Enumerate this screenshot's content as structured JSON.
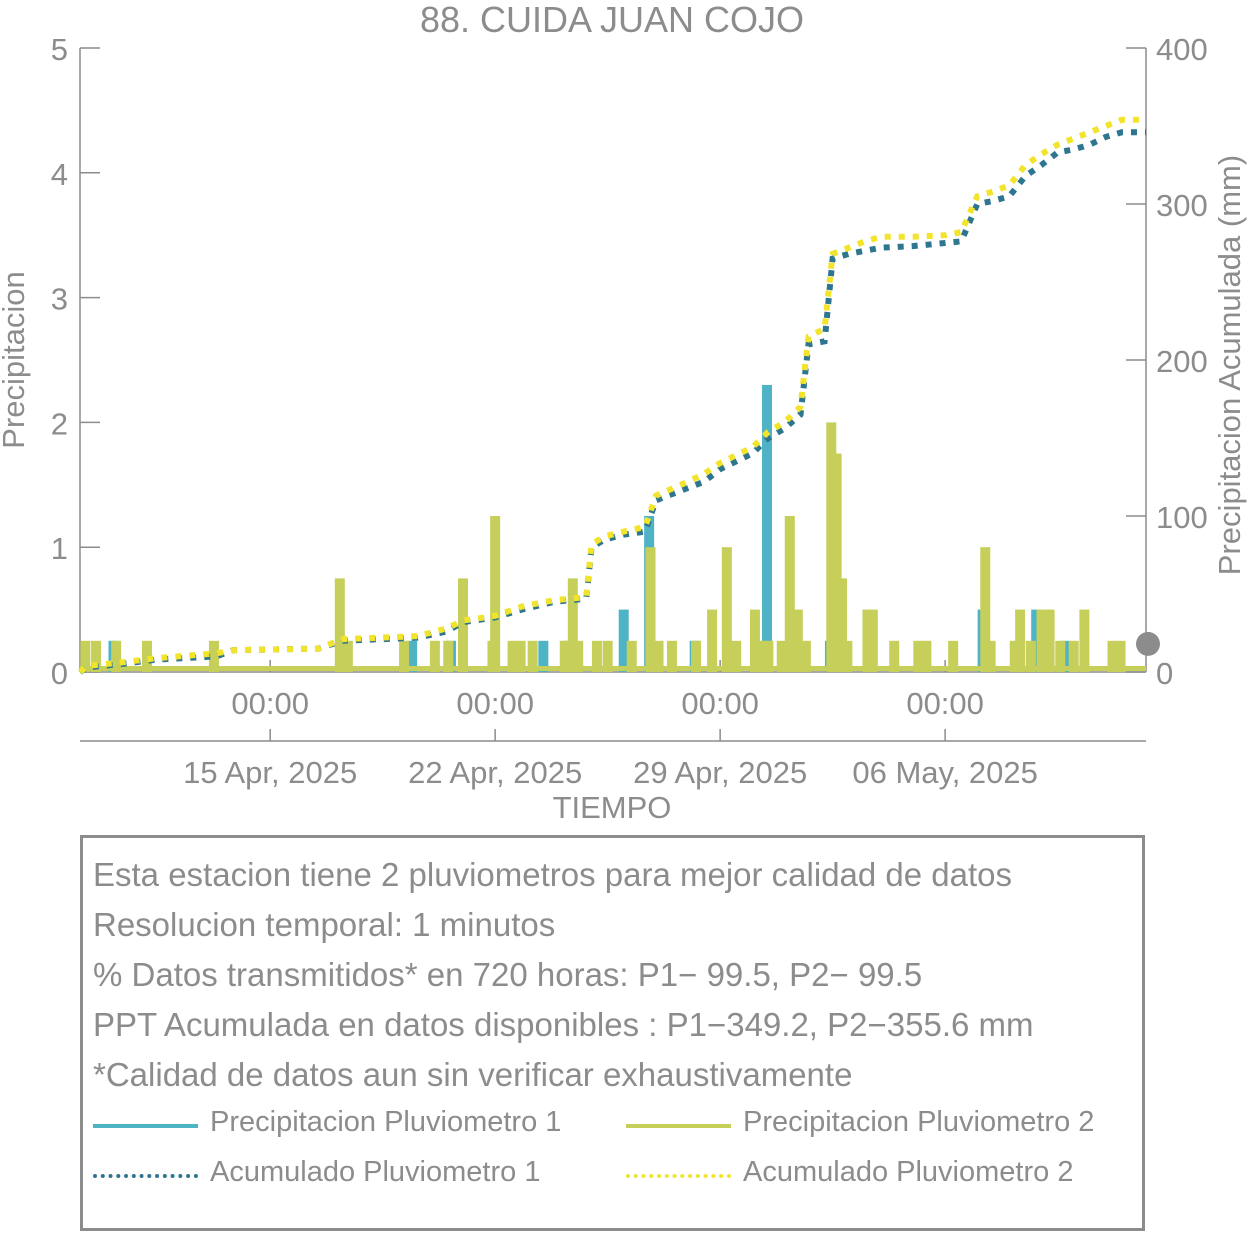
{
  "chart_data": {
    "type": "bar",
    "title": "88. CUIDA JUAN COJO",
    "xlabel": "TIEMPO",
    "ylabel": "Precipitacion",
    "y2label": "Precipitacion Acumulada (mm)",
    "x_range": [
      "2025-04-09T02:00",
      "2025-05-12T06:00"
    ],
    "ylim": [
      0,
      5
    ],
    "y2lim": [
      0,
      400
    ],
    "y_ticks": [
      0,
      1,
      2,
      3,
      4,
      5
    ],
    "y2_ticks": [
      0,
      100,
      200,
      300,
      400
    ],
    "x_ticks": [
      {
        "date": "2025-04-15T00:00",
        "time_label": "00:00",
        "date_label": "15 Apr, 2025"
      },
      {
        "date": "2025-04-22T00:00",
        "time_label": "00:00",
        "date_label": "22 Apr, 2025"
      },
      {
        "date": "2025-04-29T00:00",
        "time_label": "00:00",
        "date_label": "29 Apr, 2025"
      },
      {
        "date": "2025-05-06T00:00",
        "time_label": "00:00",
        "date_label": "06 May, 2025"
      }
    ],
    "grid": false,
    "series": [
      {
        "name": "Precipitacion Pluviometro 1",
        "kind": "bar",
        "axis": "left",
        "color": "#4fb3c6",
        "points": [
          [
            "2025-04-10T03:00",
            0.25
          ],
          [
            "2025-04-19T10:00",
            0.25
          ],
          [
            "2025-04-20T15:00",
            0.25
          ],
          [
            "2025-04-23T12:00",
            0.25
          ],
          [
            "2025-04-24T06:00",
            0.25
          ],
          [
            "2025-04-26T00:00",
            0.5
          ],
          [
            "2025-04-26T19:00",
            1.25
          ],
          [
            "2025-04-28T05:00",
            0.25
          ],
          [
            "2025-04-30T11:00",
            2.3
          ],
          [
            "2025-05-02T10:00",
            0.25
          ],
          [
            "2025-05-07T04:00",
            0.5
          ],
          [
            "2025-05-08T20:00",
            0.5
          ],
          [
            "2025-05-09T18:00",
            0.25
          ]
        ]
      },
      {
        "name": "Precipitacion Pluviometro 2",
        "kind": "bar",
        "axis": "left",
        "color": "#c5cf5a",
        "points": [
          [
            "2025-04-09T06:00",
            0.25
          ],
          [
            "2025-04-09T14:00",
            0.25
          ],
          [
            "2025-04-10T05:00",
            0.25
          ],
          [
            "2025-04-11T04:00",
            0.25
          ],
          [
            "2025-04-13T06:00",
            0.25
          ],
          [
            "2025-04-17T04:00",
            0.75
          ],
          [
            "2025-04-17T10:00",
            0.25
          ],
          [
            "2025-04-19T04:00",
            0.25
          ],
          [
            "2025-04-20T03:00",
            0.25
          ],
          [
            "2025-04-20T13:00",
            0.25
          ],
          [
            "2025-04-21T00:00",
            0.75
          ],
          [
            "2025-04-21T22:00",
            0.25
          ],
          [
            "2025-04-22T00:00",
            1.25
          ],
          [
            "2025-04-22T13:00",
            0.25
          ],
          [
            "2025-04-22T19:00",
            0.25
          ],
          [
            "2025-04-23T04:00",
            0.25
          ],
          [
            "2025-04-24T04:00",
            0.25
          ],
          [
            "2025-04-24T10:00",
            0.75
          ],
          [
            "2025-04-24T14:00",
            0.25
          ],
          [
            "2025-04-25T04:00",
            0.25
          ],
          [
            "2025-04-25T12:00",
            0.25
          ],
          [
            "2025-04-26T06:00",
            0.25
          ],
          [
            "2025-04-26T20:00",
            1.0
          ],
          [
            "2025-04-27T02:00",
            0.25
          ],
          [
            "2025-04-27T12:00",
            0.25
          ],
          [
            "2025-04-28T06:00",
            0.25
          ],
          [
            "2025-04-28T18:00",
            0.5
          ],
          [
            "2025-04-29T05:00",
            1.0
          ],
          [
            "2025-04-29T12:00",
            0.25
          ],
          [
            "2025-04-30T02:00",
            0.5
          ],
          [
            "2025-04-30T06:00",
            0.25
          ],
          [
            "2025-04-30T12:00",
            0.25
          ],
          [
            "2025-04-30T22:00",
            0.25
          ],
          [
            "2025-05-01T04:00",
            1.25
          ],
          [
            "2025-05-01T10:00",
            0.5
          ],
          [
            "2025-05-01T16:00",
            0.25
          ],
          [
            "2025-05-02T11:00",
            2.0
          ],
          [
            "2025-05-02T15:00",
            1.75
          ],
          [
            "2025-05-02T19:00",
            0.75
          ],
          [
            "2025-05-02T23:00",
            0.25
          ],
          [
            "2025-05-03T14:00",
            0.5
          ],
          [
            "2025-05-03T18:00",
            0.5
          ],
          [
            "2025-05-04T10:00",
            0.25
          ],
          [
            "2025-05-05T04:00",
            0.25
          ],
          [
            "2025-05-05T10:00",
            0.25
          ],
          [
            "2025-05-06T06:00",
            0.25
          ],
          [
            "2025-05-07T06:00",
            1.0
          ],
          [
            "2025-05-07T10:00",
            0.25
          ],
          [
            "2025-05-08T04:00",
            0.25
          ],
          [
            "2025-05-08T08:00",
            0.5
          ],
          [
            "2025-05-08T16:00",
            0.25
          ],
          [
            "2025-05-09T00:00",
            0.5
          ],
          [
            "2025-05-09T06:00",
            0.5
          ],
          [
            "2025-05-09T14:00",
            0.25
          ],
          [
            "2025-05-10T00:00",
            0.25
          ],
          [
            "2025-05-10T08:00",
            0.5
          ],
          [
            "2025-05-11T05:00",
            0.25
          ],
          [
            "2025-05-11T11:00",
            0.25
          ]
        ]
      },
      {
        "name": "Acumulado Pluviometro 1",
        "kind": "line",
        "dash": "dotted",
        "axis": "right",
        "color": "#2e7590",
        "points": [
          [
            "2025-04-09T02:00",
            0
          ],
          [
            "2025-04-09T08:00",
            3
          ],
          [
            "2025-04-10T08:00",
            5
          ],
          [
            "2025-04-11T12:00",
            8
          ],
          [
            "2025-04-13T08:00",
            10
          ],
          [
            "2025-04-13T20:00",
            14
          ],
          [
            "2025-04-16T12:00",
            15
          ],
          [
            "2025-04-17T06:00",
            20
          ],
          [
            "2025-04-19T14:00",
            22
          ],
          [
            "2025-04-20T12:00",
            26
          ],
          [
            "2025-04-21T00:00",
            32
          ],
          [
            "2025-04-22T00:00",
            35
          ],
          [
            "2025-04-22T20:00",
            40
          ],
          [
            "2025-04-23T20:00",
            45
          ],
          [
            "2025-04-24T20:00",
            47
          ],
          [
            "2025-04-25T00:00",
            80
          ],
          [
            "2025-04-25T10:00",
            85
          ],
          [
            "2025-04-26T00:00",
            88
          ],
          [
            "2025-04-26T16:00",
            90
          ],
          [
            "2025-04-27T00:00",
            110
          ],
          [
            "2025-04-28T00:00",
            118
          ],
          [
            "2025-04-28T12:00",
            122
          ],
          [
            "2025-04-29T00:00",
            130
          ],
          [
            "2025-04-30T00:00",
            140
          ],
          [
            "2025-04-30T12:00",
            150
          ],
          [
            "2025-05-01T00:00",
            156
          ],
          [
            "2025-05-01T12:00",
            165
          ],
          [
            "2025-05-01T18:00",
            210
          ],
          [
            "2025-05-02T06:00",
            212
          ],
          [
            "2025-05-02T12:00",
            265
          ],
          [
            "2025-05-03T00:00",
            268
          ],
          [
            "2025-05-03T12:00",
            270
          ],
          [
            "2025-05-04T00:00",
            272
          ],
          [
            "2025-05-05T00:00",
            273
          ],
          [
            "2025-05-06T00:00",
            275
          ],
          [
            "2025-05-06T12:00",
            276
          ],
          [
            "2025-05-07T00:00",
            300
          ],
          [
            "2025-05-07T12:00",
            302
          ],
          [
            "2025-05-08T00:00",
            305
          ],
          [
            "2025-05-08T12:00",
            318
          ],
          [
            "2025-05-09T00:00",
            325
          ],
          [
            "2025-05-09T12:00",
            333
          ],
          [
            "2025-05-10T00:00",
            335
          ],
          [
            "2025-05-10T12:00",
            338
          ],
          [
            "2025-05-11T00:00",
            343
          ],
          [
            "2025-05-11T12:00",
            346
          ],
          [
            "2025-05-12T06:00",
            346
          ]
        ]
      },
      {
        "name": "Acumulado Pluviometro 2",
        "kind": "line",
        "dash": "dotted",
        "axis": "right",
        "color": "#f2e32b",
        "points": [
          [
            "2025-04-09T02:00",
            0
          ],
          [
            "2025-04-09T08:00",
            4
          ],
          [
            "2025-04-10T08:00",
            6
          ],
          [
            "2025-04-11T12:00",
            9
          ],
          [
            "2025-04-13T08:00",
            12
          ],
          [
            "2025-04-13T20:00",
            14
          ],
          [
            "2025-04-16T12:00",
            15
          ],
          [
            "2025-04-17T06:00",
            21
          ],
          [
            "2025-04-19T14:00",
            23
          ],
          [
            "2025-04-20T12:00",
            28
          ],
          [
            "2025-04-21T00:00",
            33
          ],
          [
            "2025-04-22T00:00",
            36
          ],
          [
            "2025-04-22T20:00",
            42
          ],
          [
            "2025-04-23T20:00",
            46
          ],
          [
            "2025-04-24T20:00",
            48
          ],
          [
            "2025-04-25T00:00",
            82
          ],
          [
            "2025-04-25T10:00",
            87
          ],
          [
            "2025-04-26T00:00",
            90
          ],
          [
            "2025-04-26T16:00",
            93
          ],
          [
            "2025-04-27T00:00",
            113
          ],
          [
            "2025-04-28T00:00",
            122
          ],
          [
            "2025-04-28T12:00",
            127
          ],
          [
            "2025-04-29T00:00",
            134
          ],
          [
            "2025-04-30T00:00",
            144
          ],
          [
            "2025-04-30T12:00",
            154
          ],
          [
            "2025-05-01T00:00",
            160
          ],
          [
            "2025-05-01T12:00",
            170
          ],
          [
            "2025-05-01T18:00",
            215
          ],
          [
            "2025-05-02T06:00",
            220
          ],
          [
            "2025-05-02T12:00",
            268
          ],
          [
            "2025-05-03T00:00",
            272
          ],
          [
            "2025-05-03T12:00",
            276
          ],
          [
            "2025-05-04T00:00",
            279
          ],
          [
            "2025-05-05T00:00",
            279
          ],
          [
            "2025-05-06T00:00",
            280
          ],
          [
            "2025-05-06T12:00",
            282
          ],
          [
            "2025-05-07T00:00",
            305
          ],
          [
            "2025-05-07T12:00",
            308
          ],
          [
            "2025-05-08T00:00",
            312
          ],
          [
            "2025-05-08T12:00",
            325
          ],
          [
            "2025-05-09T00:00",
            332
          ],
          [
            "2025-05-09T12:00",
            338
          ],
          [
            "2025-05-10T00:00",
            342
          ],
          [
            "2025-05-10T12:00",
            346
          ],
          [
            "2025-05-11T00:00",
            350
          ],
          [
            "2025-05-11T12:00",
            354
          ],
          [
            "2025-05-12T06:00",
            354
          ]
        ]
      }
    ],
    "marker": {
      "x": "2025-05-12T06:00",
      "y2": 18,
      "color": "#8c8c8c"
    }
  },
  "info_box": {
    "lines": [
      "Esta estacion tiene 2 pluviometros para mejor calidad de datos",
      "Resolucion temporal: 1 minutos",
      "% Datos transmitidos* en 720 horas: P1− 99.5, P2− 99.5",
      "PPT Acumulada en datos disponibles : P1−349.2, P2−355.6 mm",
      "*Calidad de datos aun sin verificar exhaustivamente"
    ]
  },
  "legend": {
    "items": [
      {
        "label": "Precipitacion Pluviometro 1",
        "color": "#4fb3c6",
        "style": "solid"
      },
      {
        "label": "Precipitacion Pluviometro 2",
        "color": "#c5cf5a",
        "style": "solid"
      },
      {
        "label": "Acumulado Pluviometro 1",
        "color": "#2e7590",
        "style": "dotted"
      },
      {
        "label": "Acumulado Pluviometro 2",
        "color": "#f2e32b",
        "style": "dotted"
      }
    ]
  }
}
